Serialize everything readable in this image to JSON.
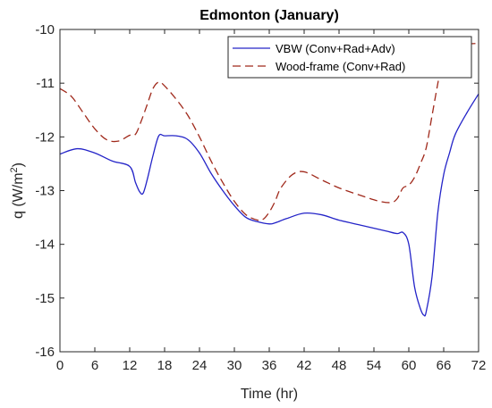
{
  "chart_data": {
    "type": "line",
    "title": "Edmonton (January)",
    "xlabel": "Time (hr)",
    "ylabel_main": "q (W/m",
    "ylabel_sup": "2",
    "ylabel_end": ")",
    "xlim": [
      0,
      72
    ],
    "ylim": [
      -16,
      -10
    ],
    "xticks": [
      0,
      6,
      12,
      18,
      24,
      30,
      36,
      42,
      48,
      54,
      60,
      66,
      72
    ],
    "yticks": [
      -16,
      -15,
      -14,
      -13,
      -12,
      -11,
      -10
    ],
    "grid": false,
    "legend_position": "top-right",
    "series": [
      {
        "name": "VBW (Conv+Rad+Adv)",
        "color": "#2424c8",
        "dash": "solid",
        "x": [
          0,
          3,
          6,
          9,
          12,
          13,
          13.7,
          14.3,
          15,
          16,
          17,
          18,
          20,
          22,
          24,
          26,
          28,
          30,
          32,
          34,
          36,
          37,
          39,
          42,
          45,
          48,
          52,
          56,
          58,
          59,
          60,
          61,
          62,
          62.6,
          63,
          64,
          65,
          66,
          67,
          68,
          70,
          72
        ],
        "y": [
          -12.32,
          -12.22,
          -12.3,
          -12.45,
          -12.55,
          -12.85,
          -13.02,
          -13.05,
          -12.8,
          -12.35,
          -11.98,
          -11.98,
          -11.98,
          -12.05,
          -12.3,
          -12.68,
          -13.0,
          -13.28,
          -13.5,
          -13.58,
          -13.62,
          -13.6,
          -13.52,
          -13.42,
          -13.45,
          -13.55,
          -13.65,
          -13.75,
          -13.8,
          -13.78,
          -14.0,
          -14.8,
          -15.2,
          -15.32,
          -15.25,
          -14.6,
          -13.4,
          -12.7,
          -12.3,
          -11.95,
          -11.55,
          -11.2
        ]
      },
      {
        "name": "Wood-frame (Conv+Rad)",
        "color": "#a0291b",
        "dash": "dashed",
        "x": [
          0,
          2,
          4,
          6,
          8,
          10,
          12,
          13,
          14,
          15,
          16,
          17,
          18,
          20,
          22,
          24,
          26,
          28,
          30,
          32,
          34,
          35,
          36,
          37,
          38,
          40,
          42,
          45,
          48,
          52,
          55,
          57,
          58,
          59,
          60,
          61,
          62,
          63,
          64,
          65,
          66,
          68,
          70,
          72
        ],
        "y": [
          -11.1,
          -11.25,
          -11.55,
          -11.85,
          -12.05,
          -12.08,
          -11.97,
          -11.95,
          -11.7,
          -11.4,
          -11.1,
          -10.98,
          -11.05,
          -11.3,
          -11.6,
          -12.0,
          -12.45,
          -12.85,
          -13.2,
          -13.45,
          -13.55,
          -13.53,
          -13.4,
          -13.2,
          -12.95,
          -12.7,
          -12.65,
          -12.8,
          -12.95,
          -13.1,
          -13.2,
          -13.22,
          -13.15,
          -12.95,
          -12.9,
          -12.75,
          -12.5,
          -12.2,
          -11.6,
          -11.0,
          -10.45,
          -10.3,
          -10.27,
          -10.26
        ]
      }
    ]
  }
}
